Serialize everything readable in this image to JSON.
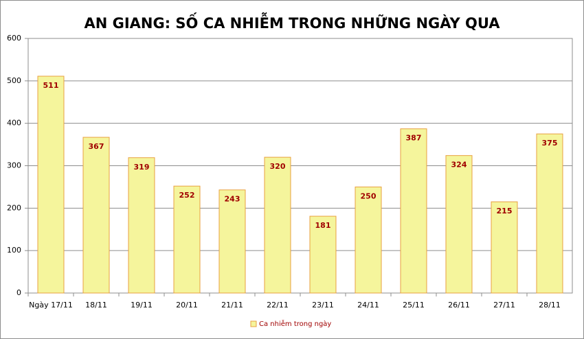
{
  "chart_data": {
    "type": "bar",
    "title": "AN GIANG: SỐ CA NHIỄM TRONG NHỮNG NGÀY QUA",
    "categories": [
      "Ngày 17/11",
      "18/11",
      "19/11",
      "20/11",
      "21/11",
      "22/11",
      "23/11",
      "24/11",
      "25/11",
      "26/11",
      "27/11",
      "28/11"
    ],
    "series": [
      {
        "name": "Ca nhiễm trong ngày",
        "color": "#f5f59c",
        "values": [
          511,
          367,
          319,
          252,
          243,
          320,
          181,
          250,
          387,
          324,
          215,
          375
        ]
      }
    ],
    "ylim": [
      0,
      600
    ],
    "yticks": [
      0,
      100,
      200,
      300,
      400,
      500,
      600
    ],
    "grid": true,
    "legend": "bottom"
  }
}
